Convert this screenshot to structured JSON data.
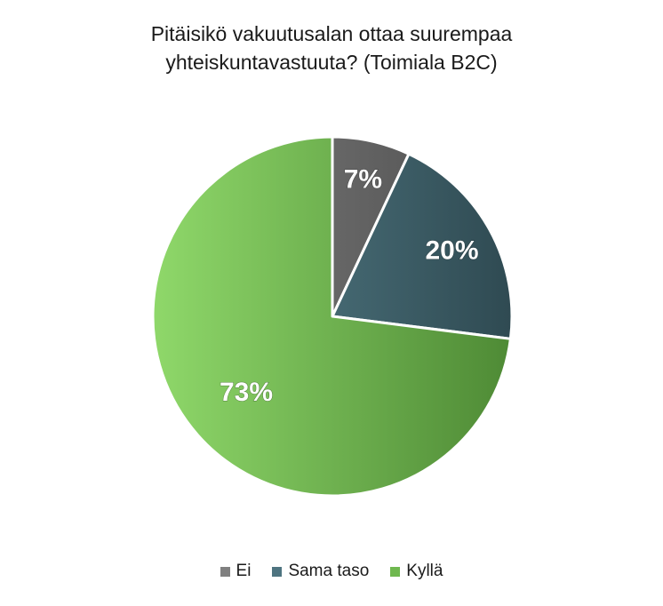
{
  "chart_data": {
    "type": "pie",
    "title_line1": "Pitäisikö vakuutusalan ottaa suurempaa",
    "title_line2": "yhteiskuntavastuuta? (Toimiala B2C)",
    "slices": [
      {
        "label": "Ei",
        "value": 7,
        "display": "7%",
        "color": "#808080",
        "color_dark": "#4d4d4d"
      },
      {
        "label": "Sama taso",
        "value": 20,
        "display": "20%",
        "color": "#5a8691",
        "color_dark": "#2f4a52"
      },
      {
        "label": "Kyllä",
        "value": 73,
        "display": "73%",
        "color": "#8fd86a",
        "color_dark": "#4e8a35"
      }
    ],
    "legend_position": "bottom",
    "data_labels": "inside"
  }
}
